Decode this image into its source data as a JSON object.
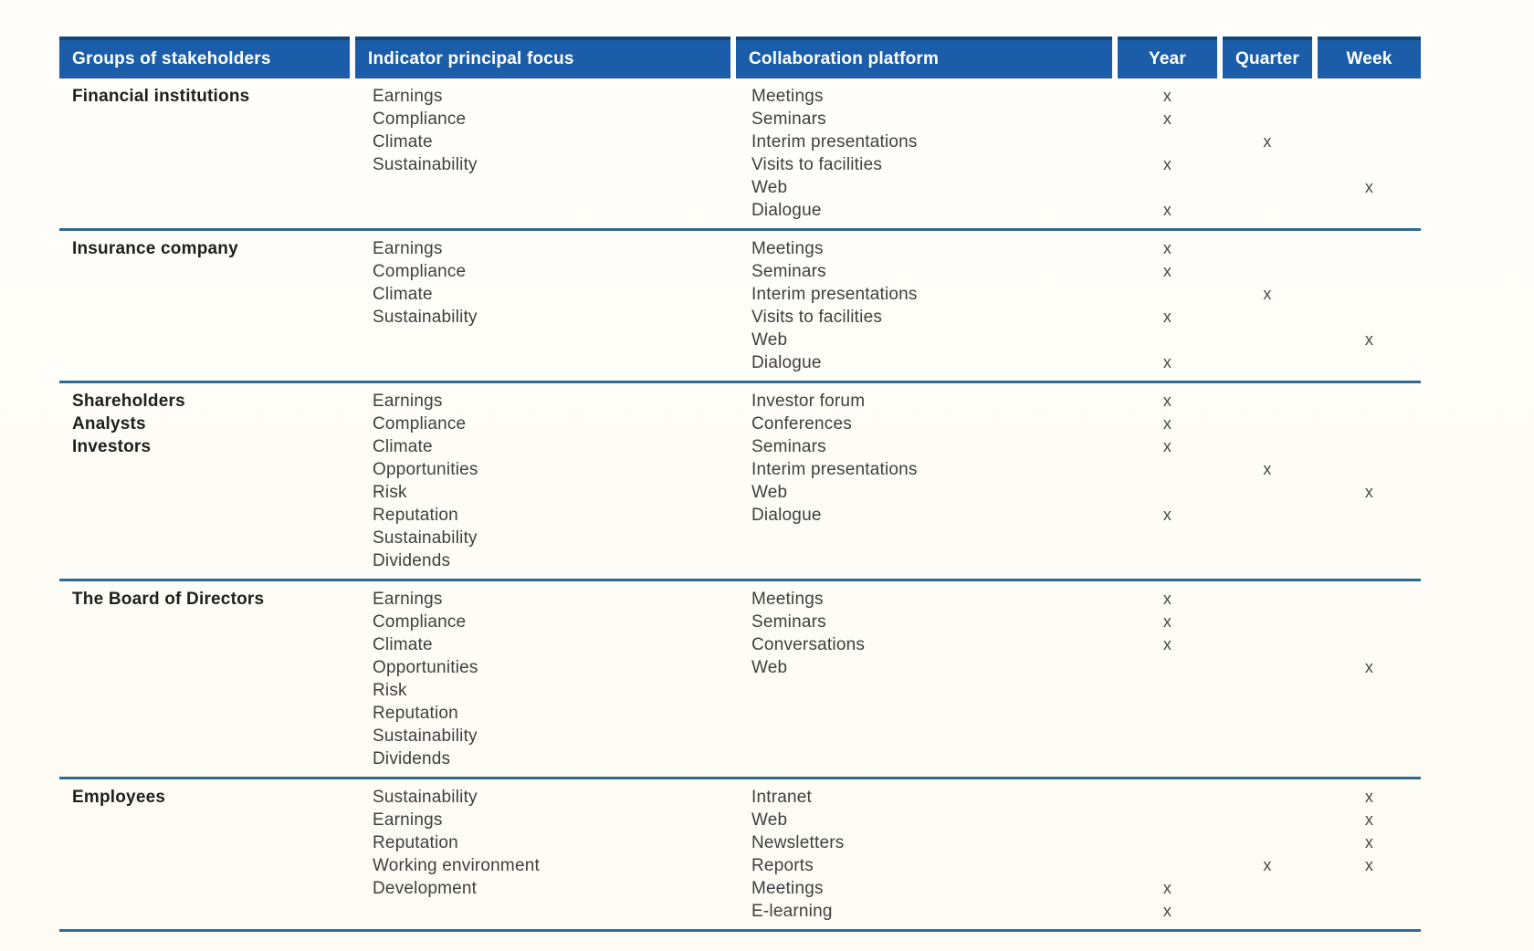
{
  "colors": {
    "header_bg": "#1b5da9",
    "header_top_border": "#16477c",
    "header_text": "#ffffff",
    "section_divider": "#2d6b97",
    "body_text": "#3f3f3f",
    "group_text": "#1f1f1f",
    "mark_text": "#4a4a4a",
    "page_background": "#fdfbf3"
  },
  "table": {
    "mark_symbol": "x",
    "columns": [
      "Groups of stakeholders",
      "Indicator principal focus",
      "Collaboration platform",
      "Year",
      "Quarter",
      "Week"
    ],
    "sections": [
      {
        "group": [
          "Financial institutions"
        ],
        "indicators": [
          "Earnings",
          "Compliance",
          "Climate",
          "Sustainability"
        ],
        "platforms": [
          {
            "name": "Meetings",
            "year": "x",
            "quarter": "",
            "week": ""
          },
          {
            "name": "Seminars",
            "year": "x",
            "quarter": "",
            "week": ""
          },
          {
            "name": "Interim presentations",
            "year": "",
            "quarter": "x",
            "week": ""
          },
          {
            "name": "Visits to facilities",
            "year": "x",
            "quarter": "",
            "week": ""
          },
          {
            "name": "Web",
            "year": "",
            "quarter": "",
            "week": "x"
          },
          {
            "name": "Dialogue",
            "year": "x",
            "quarter": "",
            "week": ""
          }
        ]
      },
      {
        "group": [
          "Insurance company"
        ],
        "indicators": [
          "Earnings",
          "Compliance",
          "Climate",
          "Sustainability"
        ],
        "platforms": [
          {
            "name": "Meetings",
            "year": "x",
            "quarter": "",
            "week": ""
          },
          {
            "name": "Seminars",
            "year": "x",
            "quarter": "",
            "week": ""
          },
          {
            "name": "Interim presentations",
            "year": "",
            "quarter": "x",
            "week": ""
          },
          {
            "name": "Visits to facilities",
            "year": "x",
            "quarter": "",
            "week": ""
          },
          {
            "name": "Web",
            "year": "",
            "quarter": "",
            "week": "x"
          },
          {
            "name": "Dialogue",
            "year": "x",
            "quarter": "",
            "week": ""
          }
        ]
      },
      {
        "group": [
          "Shareholders",
          "Analysts",
          "Investors"
        ],
        "indicators": [
          "Earnings",
          "Compliance",
          "Climate",
          "Opportunities",
          "Risk",
          "Reputation",
          "Sustainability",
          "Dividends"
        ],
        "platforms": [
          {
            "name": "Investor forum",
            "year": "x",
            "quarter": "",
            "week": ""
          },
          {
            "name": "Conferences",
            "year": "x",
            "quarter": "",
            "week": ""
          },
          {
            "name": "Seminars",
            "year": "x",
            "quarter": "",
            "week": ""
          },
          {
            "name": "Interim presentations",
            "year": "",
            "quarter": "x",
            "week": ""
          },
          {
            "name": "Web",
            "year": "",
            "quarter": "",
            "week": "x"
          },
          {
            "name": "Dialogue",
            "year": "x",
            "quarter": "",
            "week": ""
          }
        ]
      },
      {
        "group": [
          "The Board of Directors"
        ],
        "indicators": [
          "Earnings",
          "Compliance",
          "Climate",
          "Opportunities",
          "Risk",
          "Reputation",
          "Sustainability",
          "Dividends"
        ],
        "platforms": [
          {
            "name": "Meetings",
            "year": "x",
            "quarter": "",
            "week": ""
          },
          {
            "name": "Seminars",
            "year": "x",
            "quarter": "",
            "week": ""
          },
          {
            "name": "Conversations",
            "year": "x",
            "quarter": "",
            "week": ""
          },
          {
            "name": "Web",
            "year": "",
            "quarter": "",
            "week": "x"
          }
        ]
      },
      {
        "group": [
          "Employees"
        ],
        "indicators": [
          "Sustainability",
          "Earnings",
          "Reputation",
          "Working environment",
          "Development"
        ],
        "platforms": [
          {
            "name": "Intranet",
            "year": "",
            "quarter": "",
            "week": "x"
          },
          {
            "name": "Web",
            "year": "",
            "quarter": "",
            "week": "x"
          },
          {
            "name": "Newsletters",
            "year": "",
            "quarter": "",
            "week": "x"
          },
          {
            "name": "Reports",
            "year": "",
            "quarter": "x",
            "week": "x"
          },
          {
            "name": "Meetings",
            "year": "x",
            "quarter": "",
            "week": ""
          },
          {
            "name": "E-learning",
            "year": "x",
            "quarter": "",
            "week": ""
          }
        ]
      }
    ]
  }
}
